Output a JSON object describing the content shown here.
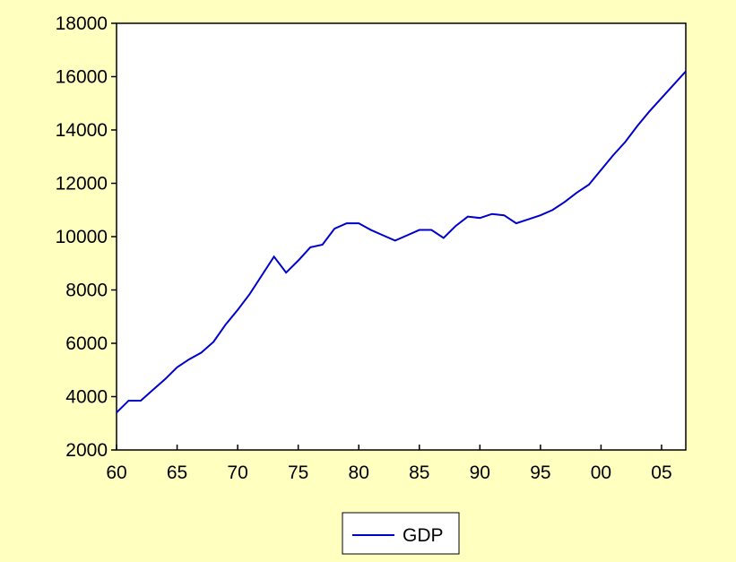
{
  "colors": {
    "background": "#FFFFC0",
    "plot_background": "#FFFFFF",
    "series_line": "#0000CC",
    "axis": "#000000"
  },
  "chart_data": {
    "type": "line",
    "title": "",
    "xlabel": "",
    "ylabel": "",
    "xlim": [
      1960,
      2007
    ],
    "ylim": [
      2000,
      18000
    ],
    "grid": false,
    "legend_position": "bottom-center",
    "x_ticks": [
      {
        "value": 1960,
        "label": "60"
      },
      {
        "value": 1965,
        "label": "65"
      },
      {
        "value": 1970,
        "label": "70"
      },
      {
        "value": 1975,
        "label": "75"
      },
      {
        "value": 1980,
        "label": "80"
      },
      {
        "value": 1985,
        "label": "85"
      },
      {
        "value": 1990,
        "label": "90"
      },
      {
        "value": 1995,
        "label": "95"
      },
      {
        "value": 2000,
        "label": "00"
      },
      {
        "value": 2005,
        "label": "05"
      }
    ],
    "y_ticks": [
      {
        "value": 2000,
        "label": "2000"
      },
      {
        "value": 4000,
        "label": "4000"
      },
      {
        "value": 6000,
        "label": "6000"
      },
      {
        "value": 8000,
        "label": "8000"
      },
      {
        "value": 10000,
        "label": "10000"
      },
      {
        "value": 12000,
        "label": "12000"
      },
      {
        "value": 14000,
        "label": "14000"
      },
      {
        "value": 16000,
        "label": "16000"
      },
      {
        "value": 18000,
        "label": "18000"
      }
    ],
    "series": [
      {
        "name": "GDP",
        "x": [
          1960,
          1961,
          1962,
          1963,
          1964,
          1965,
          1966,
          1967,
          1968,
          1969,
          1970,
          1971,
          1972,
          1973,
          1974,
          1975,
          1976,
          1977,
          1978,
          1979,
          1980,
          1981,
          1982,
          1983,
          1984,
          1985,
          1986,
          1987,
          1988,
          1989,
          1990,
          1991,
          1992,
          1993,
          1994,
          1995,
          1996,
          1997,
          1998,
          1999,
          2000,
          2001,
          2002,
          2003,
          2004,
          2005,
          2006,
          2007
        ],
        "y": [
          3400,
          3850,
          3850,
          4250,
          4650,
          5100,
          5400,
          5650,
          6050,
          6700,
          7250,
          7850,
          8550,
          9250,
          8650,
          9100,
          9600,
          9700,
          10300,
          10500,
          10500,
          10250,
          10050,
          9850,
          10050,
          10250,
          10250,
          9950,
          10400,
          10750,
          10700,
          10850,
          10800,
          10500,
          10650,
          10800,
          11000,
          11300,
          11650,
          11950,
          12500,
          13050,
          13550,
          14150,
          14700,
          15200,
          15700,
          16200
        ]
      }
    ]
  }
}
